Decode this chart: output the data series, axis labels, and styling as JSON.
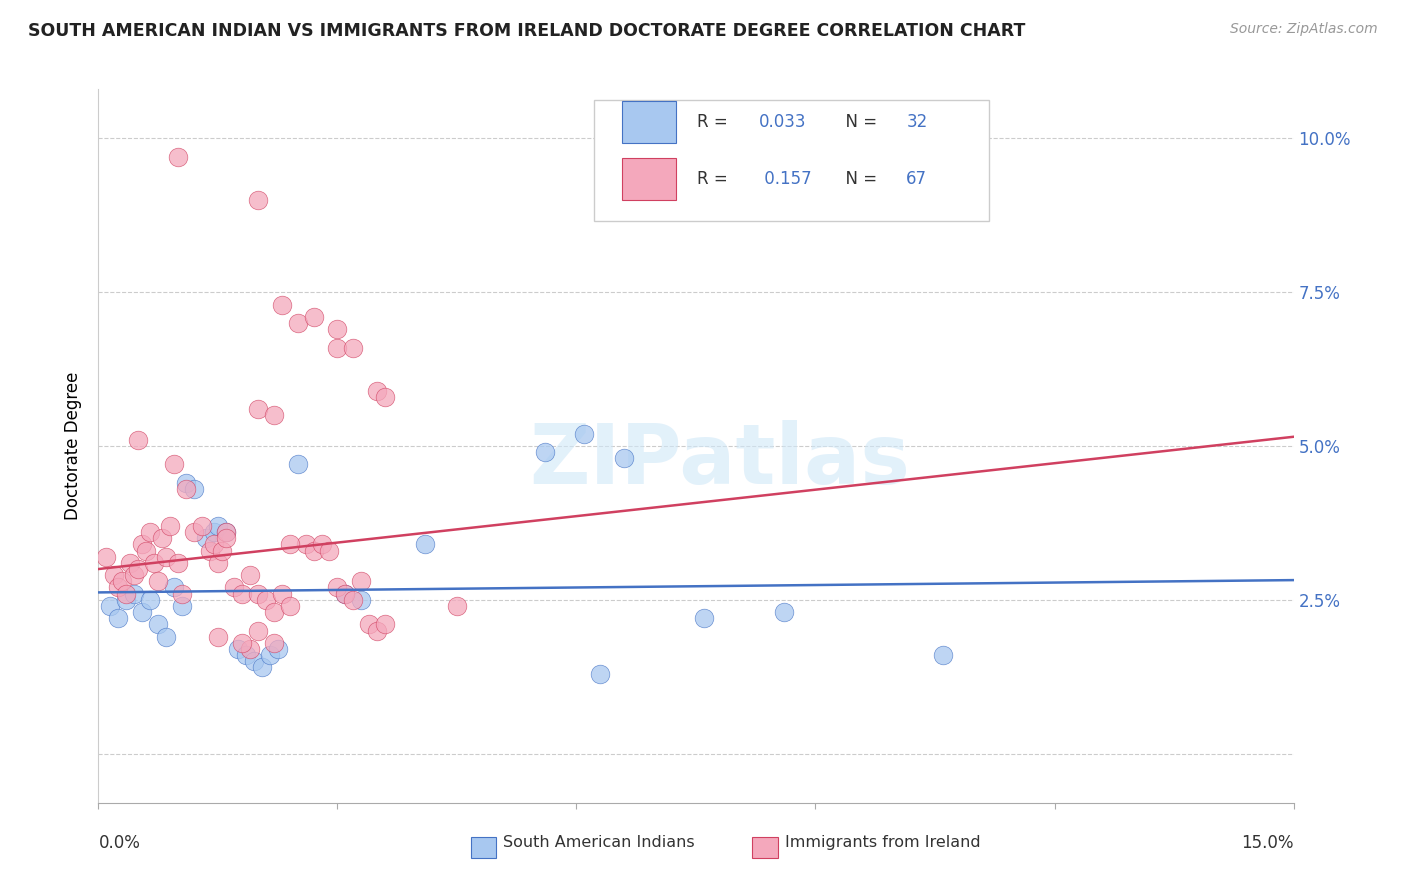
{
  "title": "SOUTH AMERICAN INDIAN VS IMMIGRANTS FROM IRELAND DOCTORATE DEGREE CORRELATION CHART",
  "source": "Source: ZipAtlas.com",
  "ylabel": "Doctorate Degree",
  "xlim": [
    0.0,
    15.0
  ],
  "ylim": [
    -0.8,
    10.8
  ],
  "yticks": [
    0.0,
    2.5,
    5.0,
    7.5,
    10.0
  ],
  "xticks": [
    0.0,
    3.0,
    6.0,
    9.0,
    12.0,
    15.0
  ],
  "color_blue": "#A8C8F0",
  "color_pink": "#F4A8BC",
  "line_blue": "#4472C4",
  "line_pink": "#D04060",
  "watermark": "ZIPatlas",
  "blue_points": [
    [
      0.15,
      2.4
    ],
    [
      0.25,
      2.2
    ],
    [
      0.35,
      2.5
    ],
    [
      0.45,
      2.6
    ],
    [
      0.55,
      2.3
    ],
    [
      0.65,
      2.5
    ],
    [
      0.75,
      2.1
    ],
    [
      0.85,
      1.9
    ],
    [
      0.95,
      2.7
    ],
    [
      1.05,
      2.4
    ],
    [
      1.1,
      4.4
    ],
    [
      1.2,
      4.3
    ],
    [
      1.35,
      3.5
    ],
    [
      1.45,
      3.6
    ],
    [
      1.5,
      3.7
    ],
    [
      1.6,
      3.6
    ],
    [
      1.75,
      1.7
    ],
    [
      1.85,
      1.6
    ],
    [
      1.95,
      1.5
    ],
    [
      2.05,
      1.4
    ],
    [
      2.15,
      1.6
    ],
    [
      2.25,
      1.7
    ],
    [
      2.5,
      4.7
    ],
    [
      3.1,
      2.6
    ],
    [
      3.3,
      2.5
    ],
    [
      4.1,
      3.4
    ],
    [
      5.6,
      4.9
    ],
    [
      6.1,
      5.2
    ],
    [
      6.6,
      4.8
    ],
    [
      7.6,
      2.2
    ],
    [
      8.6,
      2.3
    ],
    [
      10.6,
      1.6
    ],
    [
      6.3,
      1.3
    ]
  ],
  "pink_points": [
    [
      0.1,
      3.2
    ],
    [
      0.2,
      2.9
    ],
    [
      0.25,
      2.7
    ],
    [
      0.3,
      2.8
    ],
    [
      0.35,
      2.6
    ],
    [
      0.4,
      3.1
    ],
    [
      0.45,
      2.9
    ],
    [
      0.5,
      3.0
    ],
    [
      0.55,
      3.4
    ],
    [
      0.6,
      3.3
    ],
    [
      0.65,
      3.6
    ],
    [
      0.7,
      3.1
    ],
    [
      0.75,
      2.8
    ],
    [
      0.8,
      3.5
    ],
    [
      0.85,
      3.2
    ],
    [
      0.9,
      3.7
    ],
    [
      0.95,
      4.7
    ],
    [
      1.0,
      3.1
    ],
    [
      1.05,
      2.6
    ],
    [
      1.1,
      4.3
    ],
    [
      1.2,
      3.6
    ],
    [
      1.3,
      3.7
    ],
    [
      1.4,
      3.3
    ],
    [
      1.45,
      3.4
    ],
    [
      1.5,
      3.1
    ],
    [
      1.55,
      3.3
    ],
    [
      1.6,
      3.6
    ],
    [
      1.7,
      2.7
    ],
    [
      1.8,
      2.6
    ],
    [
      1.9,
      2.9
    ],
    [
      2.0,
      2.6
    ],
    [
      2.1,
      2.5
    ],
    [
      2.2,
      2.3
    ],
    [
      2.3,
      2.6
    ],
    [
      2.4,
      2.4
    ],
    [
      2.5,
      7.0
    ],
    [
      2.6,
      3.4
    ],
    [
      2.7,
      3.3
    ],
    [
      2.8,
      3.4
    ],
    [
      2.9,
      3.3
    ],
    [
      3.0,
      2.7
    ],
    [
      3.1,
      2.6
    ],
    [
      3.2,
      2.5
    ],
    [
      3.3,
      2.8
    ],
    [
      3.4,
      2.1
    ],
    [
      3.5,
      2.0
    ],
    [
      3.6,
      2.1
    ],
    [
      3.0,
      6.6
    ],
    [
      2.0,
      9.0
    ],
    [
      2.3,
      7.3
    ],
    [
      2.7,
      7.1
    ],
    [
      3.0,
      6.9
    ],
    [
      3.2,
      6.6
    ],
    [
      3.5,
      5.9
    ],
    [
      3.6,
      5.8
    ],
    [
      0.5,
      5.1
    ],
    [
      1.0,
      9.7
    ],
    [
      2.0,
      5.6
    ],
    [
      2.2,
      5.5
    ],
    [
      4.5,
      2.4
    ],
    [
      1.6,
      3.5
    ],
    [
      2.4,
      3.4
    ],
    [
      2.0,
      2.0
    ],
    [
      2.2,
      1.8
    ],
    [
      1.9,
      1.7
    ],
    [
      1.5,
      1.9
    ],
    [
      1.8,
      1.8
    ]
  ]
}
